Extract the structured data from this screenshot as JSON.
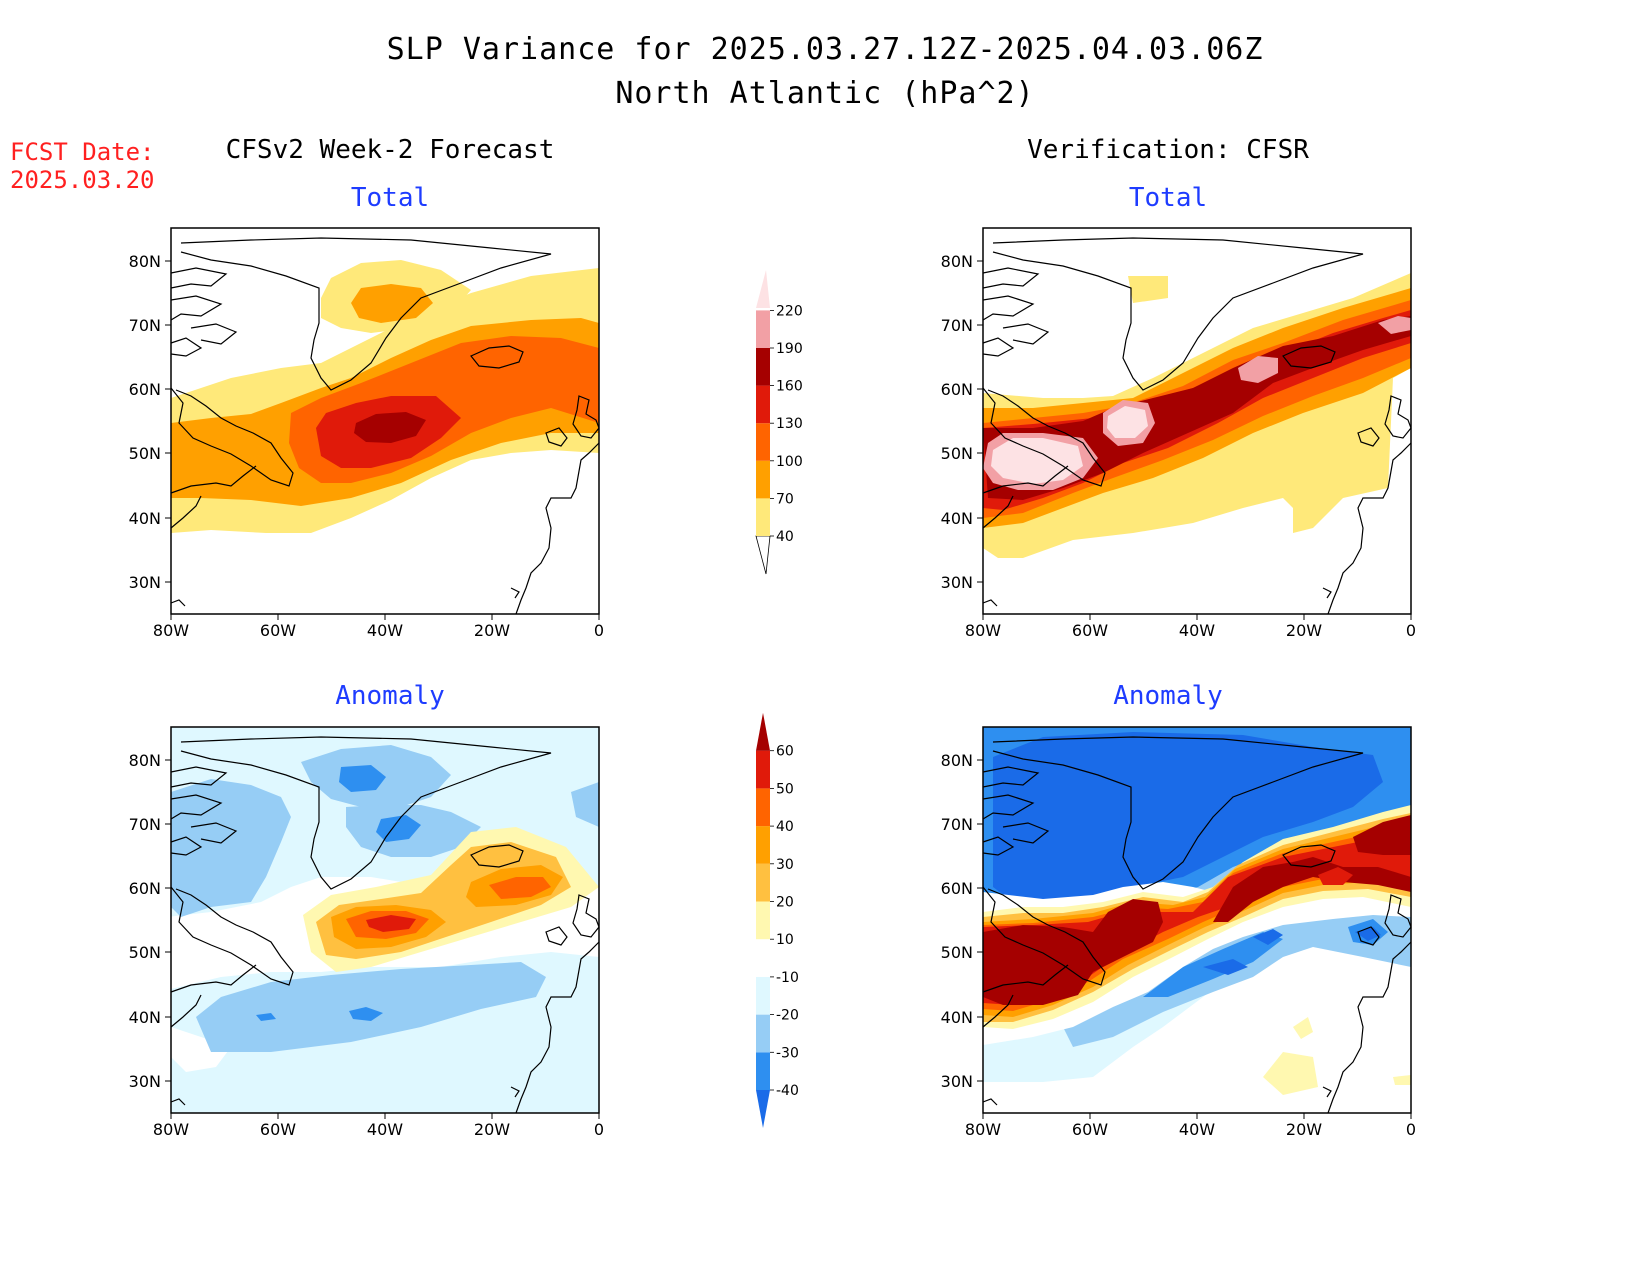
{
  "header": {
    "title_line1": "SLP Variance for 2025.03.27.12Z-2025.04.03.06Z",
    "title_line2": "North Atlantic (hPa^2)"
  },
  "fcst_date": {
    "label": "FCST Date:",
    "value": "2025.03.20"
  },
  "columns": {
    "left_title": "CFSv2 Week-2 Forecast",
    "right_title": "Verification: CFSR"
  },
  "panels": {
    "forecast_total_title": "Total",
    "verification_total_title": "Total",
    "forecast_anomaly_title": "Anomaly",
    "verification_anomaly_title": "Anomaly"
  },
  "axes": {
    "lat_labels": [
      "80N",
      "70N",
      "60N",
      "50N",
      "40N",
      "30N"
    ],
    "lon_labels": [
      "80W",
      "60W",
      "40W",
      "20W",
      "0"
    ]
  },
  "colorbar_total": {
    "levels": [
      "40",
      "70",
      "100",
      "130",
      "160",
      "190",
      "220"
    ],
    "colors": [
      "#ffe97a",
      "#ffa000",
      "#ff6400",
      "#e01a0a",
      "#a50000",
      "#f2a0a5",
      "#fde2e4"
    ]
  },
  "colorbar_anomaly": {
    "levels": [
      "-40",
      "-30",
      "-20",
      "-10",
      "10",
      "20",
      "30",
      "40",
      "50",
      "60"
    ],
    "colors": [
      "#1a6be8",
      "#2e8ff0",
      "#96cdf5",
      "#dff8ff",
      "#ffffff",
      "#fff8b0",
      "#ffc040",
      "#ffa000",
      "#ff6400",
      "#e01a0a",
      "#a50000"
    ]
  }
}
